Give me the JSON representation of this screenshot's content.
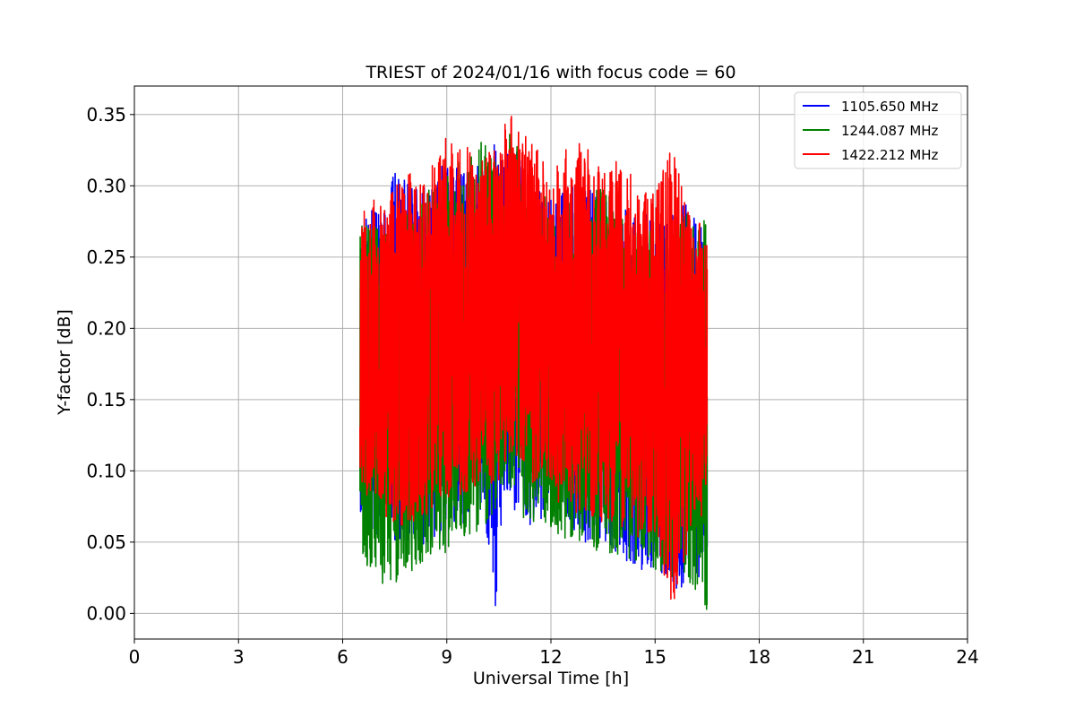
{
  "chart_data": {
    "type": "line",
    "title": "TRIEST of 2024/01/16 with focus code = 60",
    "xlabel": "Universal Time [h]",
    "ylabel": "Y-factor [dB]",
    "xlim": [
      0,
      24
    ],
    "ylim": [
      -0.018,
      0.37
    ],
    "xticks": [
      0,
      3,
      6,
      9,
      12,
      15,
      18,
      21,
      24
    ],
    "xtick_labels": [
      "0",
      "3",
      "6",
      "9",
      "12",
      "15",
      "18",
      "21",
      "24"
    ],
    "yticks": [
      0.0,
      0.05,
      0.1,
      0.15,
      0.2,
      0.25,
      0.3,
      0.35
    ],
    "ytick_labels": [
      "0.00",
      "0.05",
      "0.10",
      "0.15",
      "0.20",
      "0.25",
      "0.30",
      "0.35"
    ],
    "grid": true,
    "legend_position": "top-right",
    "series": [
      {
        "name": "1105.650 MHz",
        "color": "#0000ff",
        "x": [
          6.5,
          7.0,
          7.5,
          8.0,
          8.5,
          9.0,
          9.5,
          10.0,
          10.4,
          10.8,
          11.0,
          11.5,
          12.0,
          12.5,
          13.0,
          13.5,
          14.0,
          14.5,
          15.0,
          15.5,
          16.0,
          16.5
        ],
        "y_max": [
          0.28,
          0.285,
          0.31,
          0.3,
          0.3,
          0.32,
          0.31,
          0.315,
          0.33,
          0.345,
          0.33,
          0.3,
          0.29,
          0.3,
          0.3,
          0.29,
          0.285,
          0.28,
          0.28,
          0.28,
          0.29,
          0.26
        ],
        "y_min": [
          0.06,
          0.05,
          0.05,
          0.045,
          0.05,
          0.06,
          0.06,
          0.07,
          0.0,
          0.08,
          0.07,
          0.06,
          0.07,
          0.06,
          0.05,
          0.05,
          0.04,
          0.03,
          0.03,
          0.02,
          0.01,
          0.04
        ]
      },
      {
        "name": "1244.087 MHz",
        "color": "#008000",
        "x": [
          6.5,
          7.0,
          7.5,
          8.0,
          8.5,
          9.0,
          9.5,
          10.0,
          10.4,
          10.8,
          11.0,
          11.5,
          12.0,
          12.5,
          13.0,
          13.5,
          14.0,
          14.5,
          15.0,
          15.5,
          16.0,
          16.5
        ],
        "y_max": [
          0.28,
          0.275,
          0.28,
          0.285,
          0.3,
          0.31,
          0.32,
          0.34,
          0.32,
          0.34,
          0.33,
          0.3,
          0.29,
          0.29,
          0.3,
          0.3,
          0.28,
          0.27,
          0.27,
          0.27,
          0.285,
          0.28
        ],
        "y_min": [
          0.04,
          0.02,
          0.02,
          0.03,
          0.04,
          0.04,
          0.05,
          0.06,
          0.07,
          0.09,
          0.07,
          0.06,
          0.06,
          0.05,
          0.05,
          0.04,
          0.04,
          0.03,
          0.03,
          0.02,
          0.02,
          0.0
        ]
      },
      {
        "name": "1422.212 MHz",
        "color": "#ff0000",
        "x": [
          6.5,
          7.0,
          7.5,
          8.0,
          8.5,
          9.0,
          9.5,
          10.0,
          10.4,
          10.8,
          11.0,
          11.5,
          12.0,
          12.5,
          13.0,
          13.5,
          14.0,
          14.5,
          15.0,
          15.5,
          16.0,
          16.5
        ],
        "y_max": [
          0.295,
          0.29,
          0.3,
          0.31,
          0.31,
          0.335,
          0.33,
          0.32,
          0.33,
          0.353,
          0.345,
          0.33,
          0.31,
          0.33,
          0.33,
          0.31,
          0.32,
          0.3,
          0.3,
          0.33,
          0.28,
          0.27
        ],
        "y_min": [
          0.09,
          0.07,
          0.06,
          0.06,
          0.07,
          0.08,
          0.08,
          0.09,
          0.09,
          0.1,
          0.11,
          0.09,
          0.08,
          0.07,
          0.07,
          0.06,
          0.06,
          0.05,
          0.05,
          0.0,
          0.05,
          0.07
        ]
      }
    ]
  }
}
